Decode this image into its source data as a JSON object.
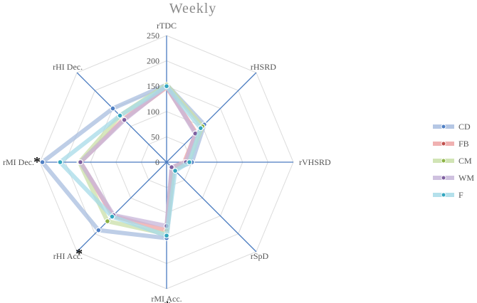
{
  "chart_data": {
    "type": "radar",
    "title": "Weekly",
    "axes": [
      "rTDC",
      "rHSRD",
      "rVHSRD",
      "rSpD",
      "rMI Acc.",
      "rHI Acc.",
      "rMI Dec.",
      "rHI Dec."
    ],
    "r_ticks": [
      0,
      50,
      100,
      150,
      200,
      250
    ],
    "r_range": [
      0,
      250
    ],
    "grid": true,
    "legend_position": "right",
    "significance_markers": [
      {
        "axis": "rMI Dec.",
        "symbol": "*"
      },
      {
        "axis": "rHI Acc.",
        "symbol": "*"
      },
      {
        "axis": "rMI Acc.",
        "symbol": "*"
      }
    ],
    "series": [
      {
        "name": "CD",
        "color": "#a8bddf",
        "marker": "#4f7fc4",
        "values": [
          153,
          105,
          50,
          20,
          150,
          190,
          245,
          150
        ]
      },
      {
        "name": "FB",
        "color": "#eda3a3",
        "marker": "#c0504d",
        "values": [
          148,
          82,
          35,
          15,
          135,
          150,
          170,
          120
        ]
      },
      {
        "name": "CM",
        "color": "#c9dfa8",
        "marker": "#8db346",
        "values": [
          153,
          100,
          42,
          18,
          142,
          165,
          172,
          130
        ]
      },
      {
        "name": "WM",
        "color": "#c7b6d9",
        "marker": "#7e5f9f",
        "values": [
          150,
          80,
          38,
          14,
          126,
          148,
          170,
          118
        ]
      },
      {
        "name": "F",
        "color": "#a7dbe8",
        "marker": "#33a6bf",
        "values": [
          150,
          95,
          45,
          24,
          145,
          152,
          210,
          130
        ]
      }
    ]
  }
}
